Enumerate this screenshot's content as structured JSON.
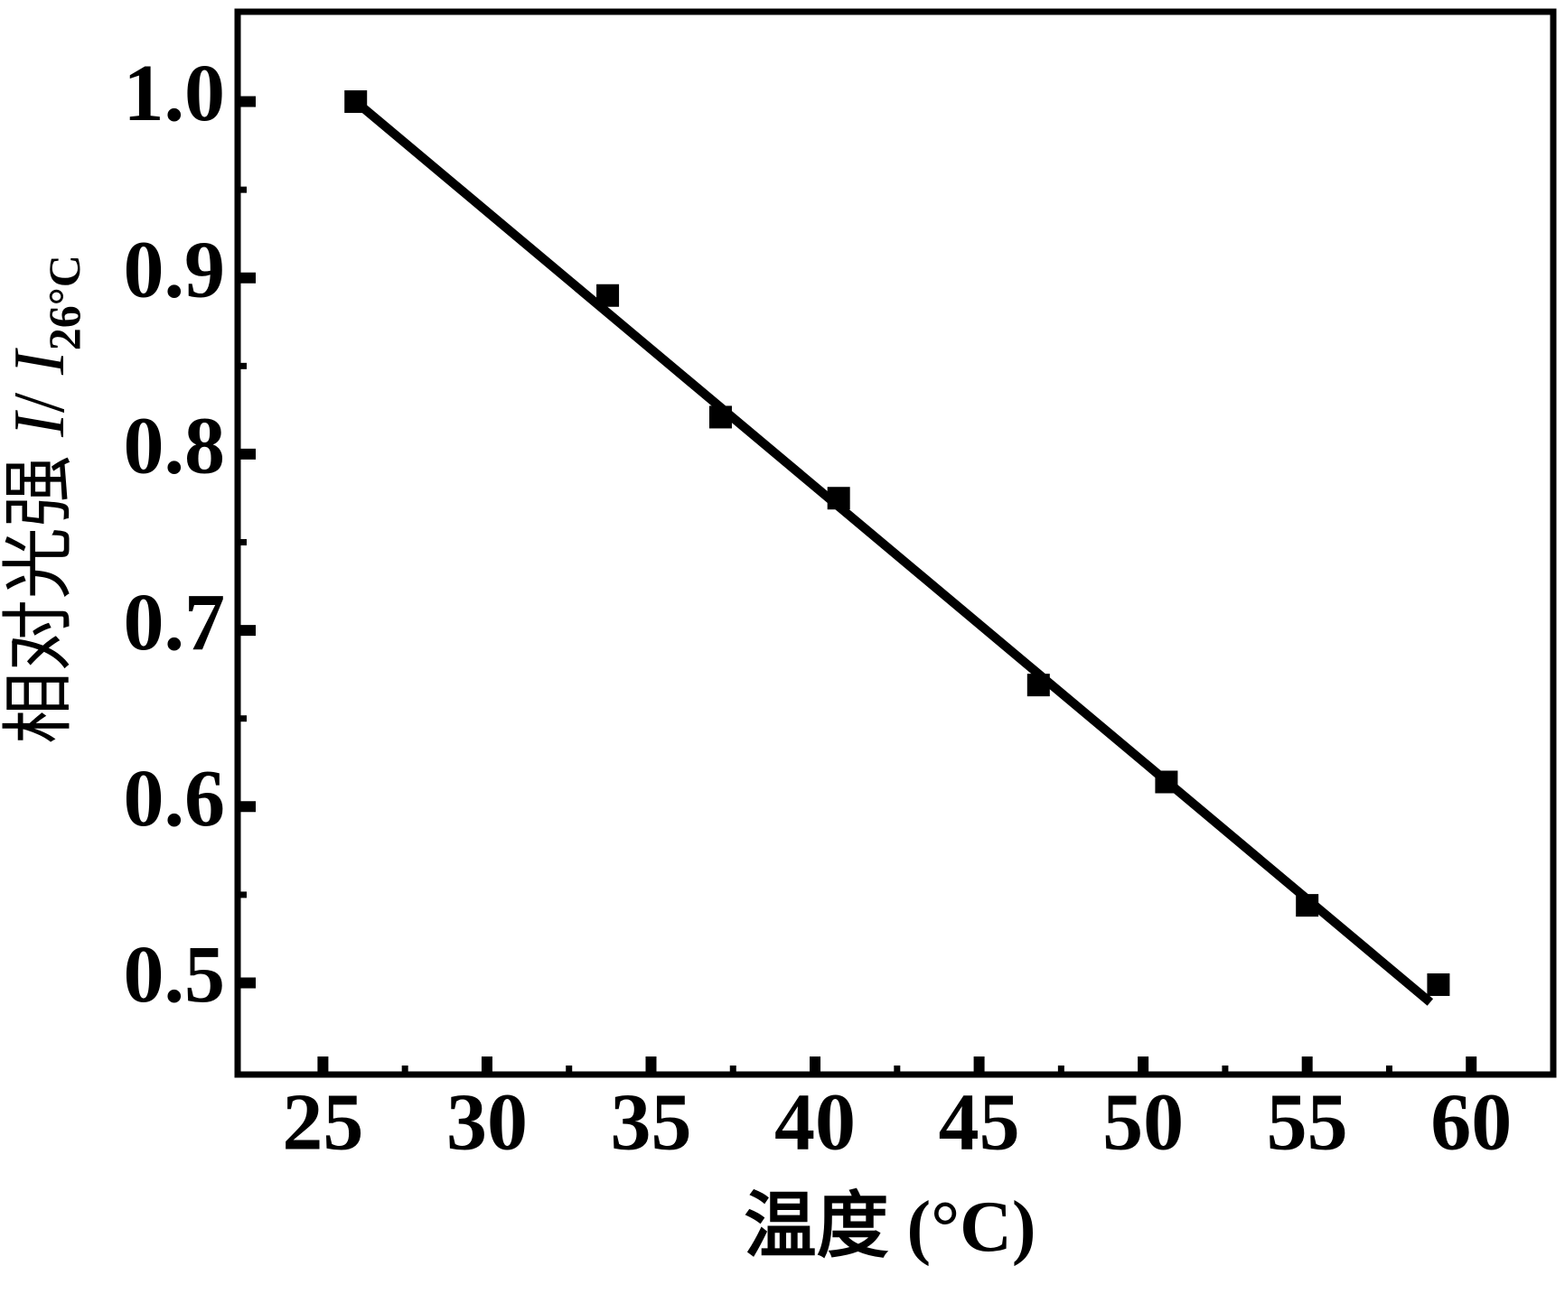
{
  "chart_data": {
    "type": "scatter",
    "xlabel": "温度 (°C)",
    "ylabel_parts": [
      "相对光强 ",
      "I",
      "/ ",
      "I",
      "26°C"
    ],
    "x": [
      26.0,
      33.68,
      37.12,
      40.72,
      46.81,
      50.71,
      55.0,
      59.0
    ],
    "values": [
      1.0,
      0.89,
      0.821,
      0.775,
      0.669,
      0.614,
      0.544,
      0.499
    ],
    "color": "#000000",
    "fit": {
      "x": [
        26.0,
        58.75
      ],
      "values": [
        1.0,
        0.489
      ]
    },
    "xlim": [
      22.4,
      62.5
    ],
    "ylim": [
      0.448,
      1.051
    ],
    "xticks": [
      25,
      30,
      35,
      40,
      45,
      50,
      55,
      60
    ],
    "xminorticks": [
      27.5,
      32.5,
      37.5,
      42.5,
      47.5,
      52.5,
      57.5
    ],
    "yticks": [
      {
        "value": 0.5,
        "label": "0.5"
      },
      {
        "value": 0.6,
        "label": "0.6"
      },
      {
        "value": 0.7,
        "label": "0.7"
      },
      {
        "value": 0.8,
        "label": "0.8"
      },
      {
        "value": 0.9,
        "label": "0.9"
      },
      {
        "value": 1.0,
        "label": "1.0"
      }
    ],
    "yminorticks": [
      0.55,
      0.65,
      0.75,
      0.85,
      0.95
    ]
  }
}
